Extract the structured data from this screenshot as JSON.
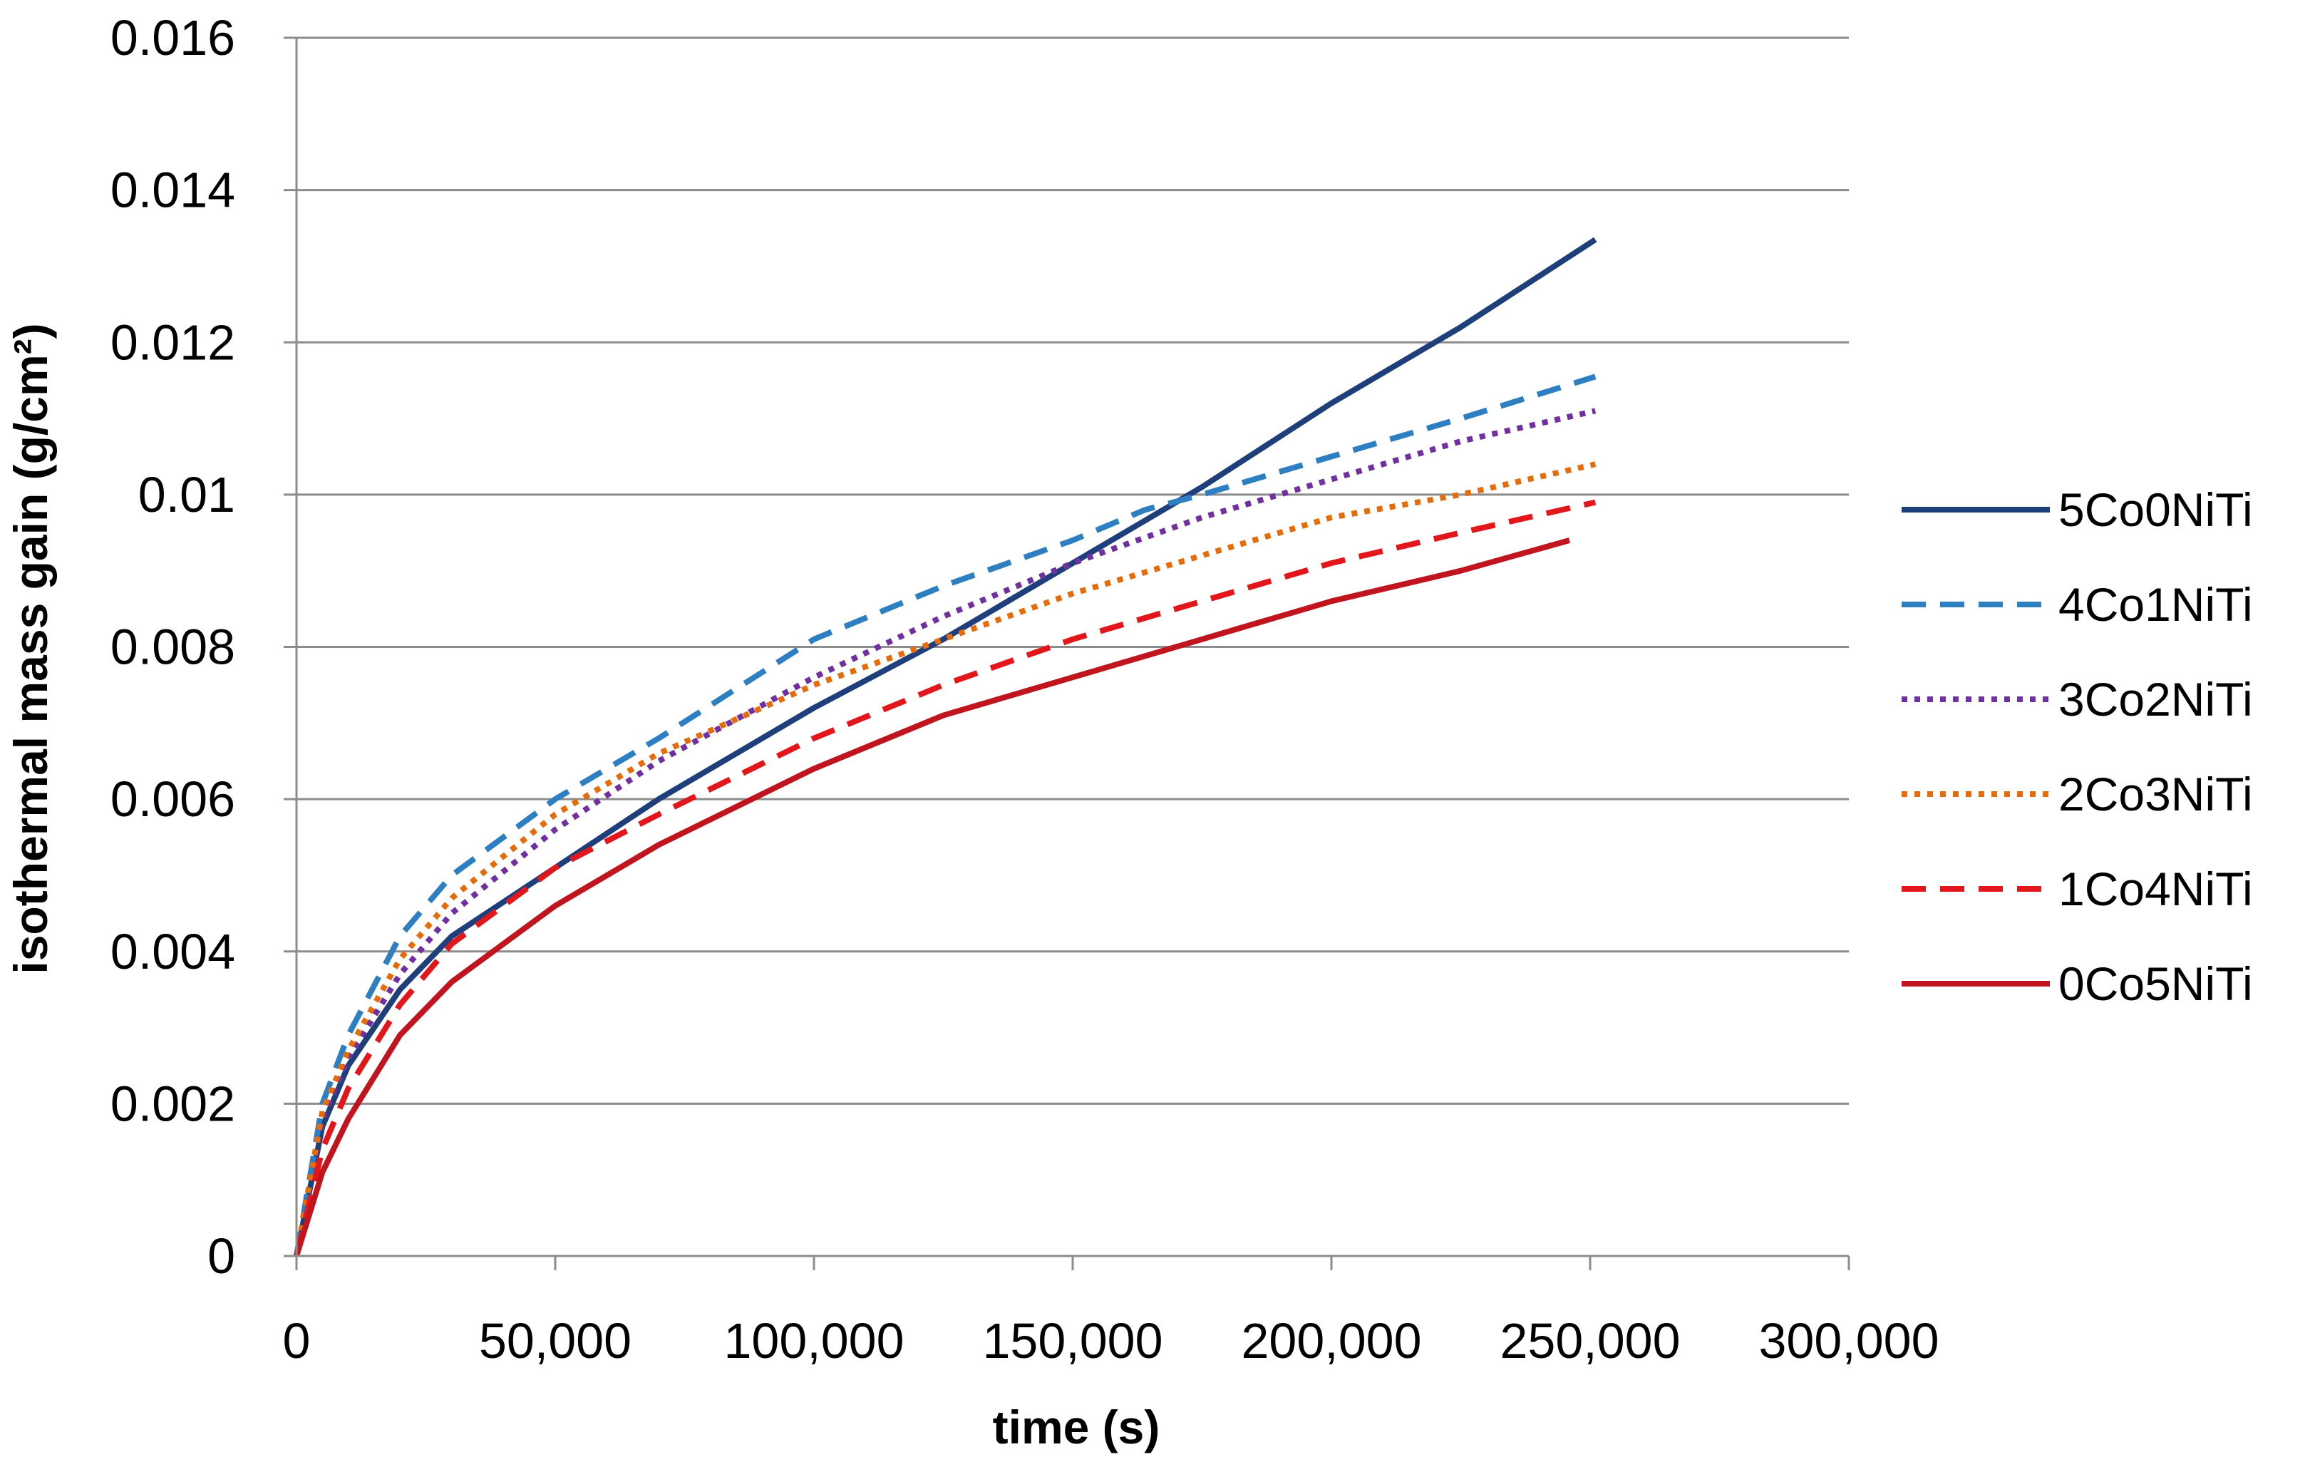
{
  "chart_data": {
    "type": "line",
    "title": "",
    "xlabel": "time (s)",
    "ylabel": "isothermal mass gain (g/cm²)",
    "xlim": [
      0,
      300000
    ],
    "ylim": [
      0,
      0.016
    ],
    "x_ticks": [
      "0",
      "50,000",
      "100,000",
      "150,000",
      "200,000",
      "250,000",
      "300,000"
    ],
    "y_ticks": [
      "0",
      "0.002",
      "0.004",
      "0.006",
      "0.008",
      "0.01",
      "0.012",
      "0.014",
      "0.016"
    ],
    "grid": "horizontal",
    "legend_position": "right",
    "series": [
      {
        "name": "5Co0NiTi",
        "color": "#1f3f7a",
        "line_style": "solid",
        "x": [
          0,
          5000,
          10000,
          20000,
          30000,
          50000,
          70000,
          100000,
          125000,
          150000,
          175000,
          200000,
          225000,
          251000
        ],
        "y": [
          0,
          0.0017,
          0.0025,
          0.0035,
          0.0042,
          0.0051,
          0.006,
          0.0072,
          0.0081,
          0.0091,
          0.0101,
          0.0112,
          0.0122,
          0.01335
        ]
      },
      {
        "name": "4Co1NiTi",
        "color": "#2e7fc1",
        "line_style": "dashed",
        "x": [
          0,
          5000,
          10000,
          20000,
          30000,
          50000,
          70000,
          100000,
          125000,
          150000,
          164000,
          175000,
          200000,
          225000,
          251000
        ],
        "y": [
          0,
          0.002,
          0.0029,
          0.0042,
          0.005,
          0.006,
          0.0068,
          0.0081,
          0.0088,
          0.0094,
          0.0098,
          0.01,
          0.0105,
          0.011,
          0.01155
        ]
      },
      {
        "name": "3Co2NiTi",
        "color": "#7030a0",
        "line_style": "dotted",
        "x": [
          0,
          5000,
          10000,
          20000,
          30000,
          50000,
          70000,
          100000,
          125000,
          150000,
          175000,
          200000,
          225000,
          251000
        ],
        "y": [
          0,
          0.0018,
          0.0026,
          0.0037,
          0.0045,
          0.0056,
          0.0065,
          0.0076,
          0.0084,
          0.0091,
          0.0097,
          0.0102,
          0.0107,
          0.0111
        ]
      },
      {
        "name": "2Co3NiTi",
        "color": "#e46c0a",
        "line_style": "dotted",
        "x": [
          0,
          5000,
          10000,
          20000,
          30000,
          50000,
          70000,
          100000,
          125000,
          150000,
          175000,
          200000,
          225000,
          251000
        ],
        "y": [
          0,
          0.0019,
          0.0027,
          0.0039,
          0.0047,
          0.0058,
          0.0066,
          0.0075,
          0.0081,
          0.0087,
          0.0092,
          0.0097,
          0.01,
          0.0104
        ]
      },
      {
        "name": "1Co4NiTi",
        "color": "#e3171b",
        "line_style": "dashed",
        "x": [
          0,
          5000,
          10000,
          20000,
          30000,
          50000,
          70000,
          100000,
          125000,
          150000,
          175000,
          200000,
          225000,
          251000
        ],
        "y": [
          0,
          0.0014,
          0.0022,
          0.0033,
          0.0041,
          0.0051,
          0.0058,
          0.0068,
          0.0075,
          0.0081,
          0.0086,
          0.0091,
          0.0095,
          0.0099
        ]
      },
      {
        "name": "0Co5NiTi",
        "color": "#c0151e",
        "line_style": "solid",
        "x": [
          0,
          5000,
          10000,
          20000,
          30000,
          50000,
          70000,
          100000,
          125000,
          150000,
          175000,
          200000,
          225000,
          246000
        ],
        "y": [
          0,
          0.0011,
          0.0018,
          0.0029,
          0.0036,
          0.0046,
          0.0054,
          0.0064,
          0.0071,
          0.0076,
          0.0081,
          0.0086,
          0.009,
          0.0094
        ]
      }
    ]
  }
}
